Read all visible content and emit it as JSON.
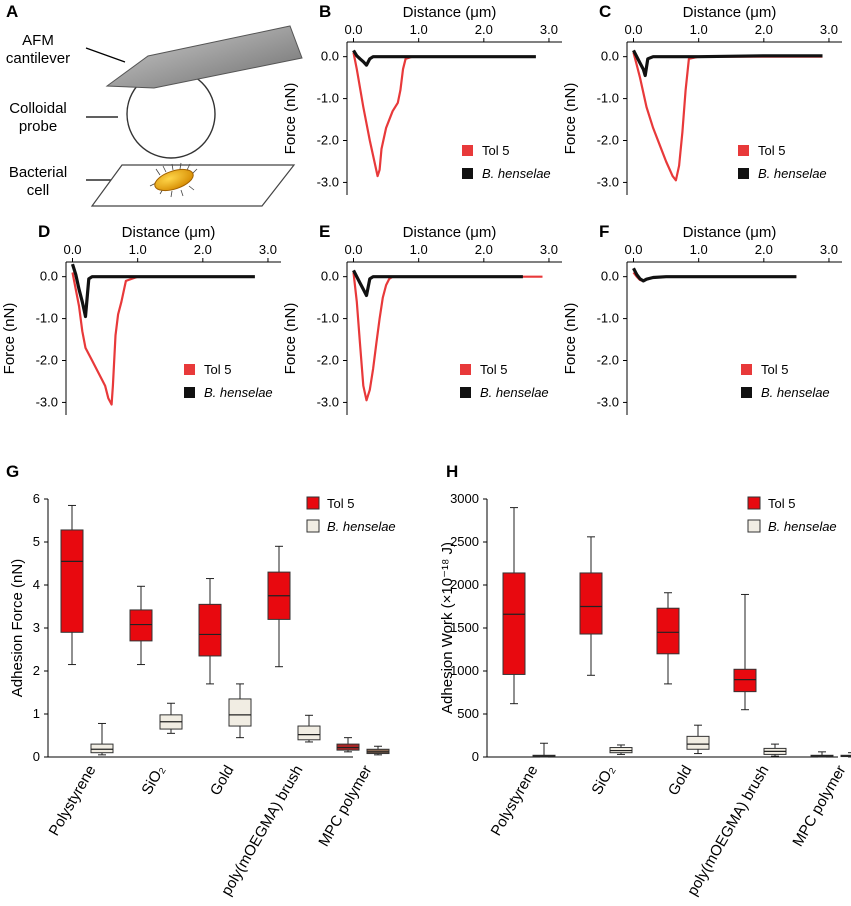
{
  "figure": {
    "panel_a": {
      "letter": "A",
      "label_cantilever_1": "AFM",
      "label_cantilever_2": "cantilever",
      "label_probe_1": "Colloidal",
      "label_probe_2": "probe",
      "label_cell_1": "Bacterial",
      "label_cell_2": "cell"
    },
    "colors": {
      "tol5_line": "#e8393a",
      "henselae_line": "#111111",
      "tol5_box": "#e8090f",
      "henselae_box": "#f1ede3",
      "mpc_tol5_box": "#a92626",
      "mpc_henselae_box": "#8a6a55"
    }
  },
  "chart_data": [
    {
      "panel": "B",
      "type": "line",
      "xlabel": "Distance (μm)",
      "ylabel": "Force (nN)",
      "xticks": [
        "0.0",
        "1.0",
        "2.0",
        "3.0"
      ],
      "xlim": [
        -0.1,
        3.2
      ],
      "yticks": [
        "0.0",
        "-1.0",
        "-2.0",
        "-3.0"
      ],
      "ylim": [
        -3.3,
        0.35
      ],
      "legend": [
        "Tol 5",
        "B. henselae"
      ],
      "series": [
        {
          "name": "Tol 5",
          "x": [
            0.0,
            0.05,
            0.15,
            0.25,
            0.32,
            0.37,
            0.4,
            0.43,
            0.5,
            0.6,
            0.68,
            0.72,
            0.76,
            0.8,
            0.9,
            1.2
          ],
          "y": [
            0.1,
            -0.3,
            -1.2,
            -2.0,
            -2.5,
            -2.85,
            -2.7,
            -2.2,
            -1.7,
            -1.3,
            -1.1,
            -0.8,
            -0.3,
            -0.05,
            0.0,
            0.0
          ]
        },
        {
          "name": "B. henselae",
          "x": [
            0.0,
            0.05,
            0.1,
            0.15,
            0.2,
            0.25,
            0.3,
            1.0,
            2.0,
            2.8
          ],
          "y": [
            0.15,
            0.02,
            -0.05,
            -0.12,
            -0.2,
            -0.05,
            0.0,
            0.0,
            0.0,
            0.0
          ]
        }
      ]
    },
    {
      "panel": "C",
      "type": "line",
      "xlabel": "Distance (μm)",
      "ylabel": "Force (nN)",
      "xticks": [
        "0.0",
        "1.0",
        "2.0",
        "3.0"
      ],
      "xlim": [
        -0.1,
        3.2
      ],
      "yticks": [
        "0.0",
        "-1.0",
        "-2.0",
        "-3.0"
      ],
      "ylim": [
        -3.3,
        0.35
      ],
      "legend": [
        "Tol 5",
        "B. henselae"
      ],
      "series": [
        {
          "name": "Tol 5",
          "x": [
            0.0,
            0.1,
            0.2,
            0.3,
            0.4,
            0.5,
            0.6,
            0.65,
            0.7,
            0.75,
            0.8,
            0.85,
            1.0,
            2.0,
            2.9
          ],
          "y": [
            0.1,
            -0.5,
            -1.2,
            -1.7,
            -2.1,
            -2.5,
            -2.85,
            -2.95,
            -2.6,
            -1.8,
            -0.8,
            -0.05,
            0.0,
            0.0,
            0.0
          ]
        },
        {
          "name": "B. henselae",
          "x": [
            0.0,
            0.05,
            0.1,
            0.15,
            0.18,
            0.22,
            0.3,
            1.0,
            2.0,
            2.9
          ],
          "y": [
            0.15,
            0.0,
            -0.15,
            -0.3,
            -0.45,
            -0.05,
            0.0,
            0.0,
            0.02,
            0.02
          ]
        }
      ]
    },
    {
      "panel": "D",
      "type": "line",
      "xlabel": "Distance (μm)",
      "ylabel": "Force (nN)",
      "xticks": [
        "0.0",
        "1.0",
        "2.0",
        "3.0"
      ],
      "xlim": [
        -0.1,
        3.2
      ],
      "yticks": [
        "0.0",
        "-1.0",
        "-2.0",
        "-3.0"
      ],
      "ylim": [
        -3.3,
        0.35
      ],
      "legend": [
        "Tol 5",
        "B. henselae"
      ],
      "series": [
        {
          "name": "Tol 5",
          "x": [
            0.0,
            0.1,
            0.15,
            0.2,
            0.3,
            0.4,
            0.5,
            0.55,
            0.6,
            0.62,
            0.66,
            0.7,
            0.75,
            0.82,
            1.0,
            2.0,
            2.6
          ],
          "y": [
            0.1,
            -0.7,
            -1.3,
            -1.7,
            -2.0,
            -2.3,
            -2.6,
            -2.9,
            -3.05,
            -2.6,
            -1.4,
            -0.9,
            -0.6,
            -0.1,
            0.0,
            0.0,
            0.0
          ]
        },
        {
          "name": "B. henselae",
          "x": [
            0.0,
            0.05,
            0.1,
            0.15,
            0.2,
            0.25,
            0.3,
            1.0,
            2.0,
            2.8
          ],
          "y": [
            0.3,
            0.05,
            -0.3,
            -0.6,
            -0.95,
            -0.05,
            0.0,
            0.0,
            0.0,
            0.0
          ]
        }
      ]
    },
    {
      "panel": "E",
      "type": "line",
      "xlabel": "Distance (μm)",
      "ylabel": "Force (nN)",
      "xticks": [
        "0.0",
        "1.0",
        "2.0",
        "3.0"
      ],
      "xlim": [
        -0.1,
        3.2
      ],
      "yticks": [
        "0.0",
        "-1.0",
        "-2.0",
        "-3.0"
      ],
      "ylim": [
        -3.3,
        0.35
      ],
      "legend": [
        "Tol 5",
        "B. henselae"
      ],
      "series": [
        {
          "name": "Tol 5",
          "x": [
            0.0,
            0.05,
            0.1,
            0.15,
            0.2,
            0.25,
            0.3,
            0.35,
            0.4,
            0.45,
            0.5,
            0.55,
            0.6,
            1.0,
            2.0,
            2.9
          ],
          "y": [
            0.1,
            -0.6,
            -1.6,
            -2.6,
            -2.95,
            -2.7,
            -2.2,
            -1.6,
            -1.0,
            -0.5,
            -0.2,
            -0.05,
            0.0,
            0.0,
            0.0,
            0.0
          ]
        },
        {
          "name": "B. henselae",
          "x": [
            0.0,
            0.05,
            0.1,
            0.15,
            0.2,
            0.25,
            0.3,
            1.0,
            2.0,
            2.6
          ],
          "y": [
            0.15,
            0.0,
            -0.15,
            -0.3,
            -0.45,
            -0.05,
            0.0,
            0.0,
            0.0,
            0.0
          ]
        }
      ]
    },
    {
      "panel": "F",
      "type": "line",
      "xlabel": "Distance (μm)",
      "ylabel": "Force (nN)",
      "xticks": [
        "0.0",
        "1.0",
        "2.0",
        "3.0"
      ],
      "xlim": [
        -0.1,
        3.2
      ],
      "yticks": [
        "0.0",
        "-1.0",
        "-2.0",
        "-3.0"
      ],
      "ylim": [
        -3.3,
        0.35
      ],
      "legend": [
        "Tol 5",
        "B. henselae"
      ],
      "series": [
        {
          "name": "Tol 5",
          "x": [
            0.0,
            0.05,
            0.1,
            0.15,
            0.2,
            0.3,
            0.5,
            1.0,
            2.0,
            2.5
          ],
          "y": [
            0.1,
            0.0,
            -0.08,
            -0.1,
            -0.06,
            -0.02,
            0.0,
            0.0,
            0.0,
            0.0
          ]
        },
        {
          "name": "B. henselae",
          "x": [
            0.0,
            0.05,
            0.1,
            0.15,
            0.2,
            0.3,
            0.5,
            1.0,
            2.0,
            2.5
          ],
          "y": [
            0.2,
            0.05,
            -0.05,
            -0.1,
            -0.06,
            -0.02,
            0.0,
            0.0,
            0.0,
            0.0
          ]
        }
      ]
    },
    {
      "panel": "G",
      "type": "box",
      "ylabel": "Adhesion Force (nN)",
      "ylim": [
        0,
        6
      ],
      "yticks": [
        0,
        1,
        2,
        3,
        4,
        5,
        6
      ],
      "categories": [
        "Polystyrene",
        "SiO₂",
        "Gold",
        "poly(mOEGMA) brush",
        "MPC polymer"
      ],
      "legend": [
        "Tol 5",
        "B. henselae"
      ],
      "series": [
        {
          "name": "Tol 5",
          "boxes": [
            {
              "min": 2.15,
              "q1": 2.9,
              "median": 4.55,
              "q3": 5.28,
              "max": 5.85
            },
            {
              "min": 2.15,
              "q1": 2.7,
              "median": 3.08,
              "q3": 3.42,
              "max": 3.97
            },
            {
              "min": 1.7,
              "q1": 2.35,
              "median": 2.85,
              "q3": 3.55,
              "max": 4.15
            },
            {
              "min": 2.1,
              "q1": 3.2,
              "median": 3.75,
              "q3": 4.3,
              "max": 4.9
            },
            {
              "min": 0.12,
              "q1": 0.16,
              "median": 0.22,
              "q3": 0.3,
              "max": 0.45
            }
          ]
        },
        {
          "name": "B. henselae",
          "boxes": [
            {
              "min": 0.05,
              "q1": 0.1,
              "median": 0.18,
              "q3": 0.3,
              "max": 0.78
            },
            {
              "min": 0.55,
              "q1": 0.65,
              "median": 0.82,
              "q3": 0.98,
              "max": 1.25
            },
            {
              "min": 0.45,
              "q1": 0.72,
              "median": 0.98,
              "q3": 1.35,
              "max": 1.7
            },
            {
              "min": 0.35,
              "q1": 0.4,
              "median": 0.52,
              "q3": 0.72,
              "max": 0.97
            },
            {
              "min": 0.05,
              "q1": 0.08,
              "median": 0.12,
              "q3": 0.18,
              "max": 0.25
            }
          ]
        }
      ]
    },
    {
      "panel": "H",
      "type": "box",
      "ylabel": "Adhesion Work (×10⁻¹⁸ J)",
      "ylim": [
        0,
        3000
      ],
      "yticks": [
        0,
        500,
        1000,
        1500,
        2000,
        2500,
        3000
      ],
      "categories": [
        "Polystyrene",
        "SiO₂",
        "Gold",
        "poly(mOEGMA) brush",
        "MPC polymer"
      ],
      "legend": [
        "Tol 5",
        "B. henselae"
      ],
      "series": [
        {
          "name": "Tol 5",
          "boxes": [
            {
              "min": 620,
              "q1": 960,
              "median": 1660,
              "q3": 2140,
              "max": 2900
            },
            {
              "min": 950,
              "q1": 1430,
              "median": 1750,
              "q3": 2140,
              "max": 2560
            },
            {
              "min": 850,
              "q1": 1200,
              "median": 1450,
              "q3": 1730,
              "max": 1910
            },
            {
              "min": 550,
              "q1": 760,
              "median": 900,
              "q3": 1020,
              "max": 1890
            },
            {
              "min": 0,
              "q1": 5,
              "median": 12,
              "q3": 20,
              "max": 60
            }
          ]
        },
        {
          "name": "B. henselae",
          "boxes": [
            {
              "min": 0,
              "q1": 5,
              "median": 10,
              "q3": 20,
              "max": 160
            },
            {
              "min": 30,
              "q1": 50,
              "median": 75,
              "q3": 110,
              "max": 140
            },
            {
              "min": 40,
              "q1": 90,
              "median": 150,
              "q3": 240,
              "max": 370
            },
            {
              "min": 10,
              "q1": 30,
              "median": 65,
              "q3": 100,
              "max": 150
            },
            {
              "min": 0,
              "q1": 5,
              "median": 10,
              "q3": 20,
              "max": 50
            }
          ]
        }
      ]
    }
  ]
}
